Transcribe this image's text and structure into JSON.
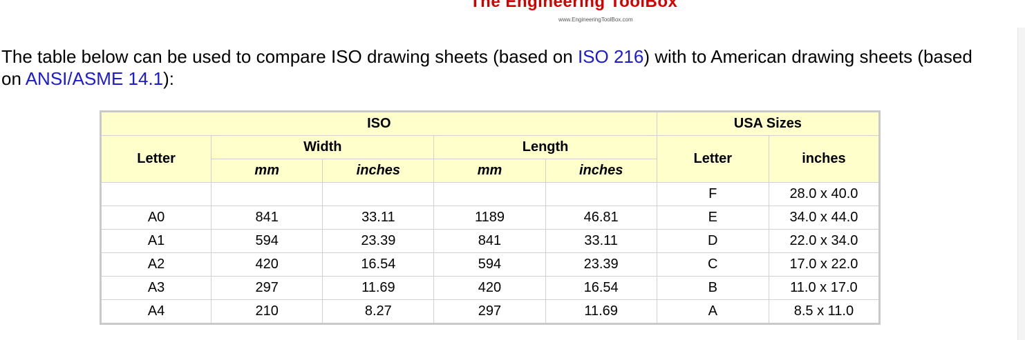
{
  "logo": {
    "title": "The Engineering ToolBox",
    "url": "www.EngineeringToolBox.com"
  },
  "intro": {
    "text_1": "The table below can be used to compare ISO drawing sheets (based on ",
    "link_iso": "ISO 216",
    "text_2": ") with to American drawing sheets (based on ",
    "link_ansi": "ANSI/ASME 14.1",
    "text_3": "):"
  },
  "table": {
    "group_iso": "ISO",
    "group_usa": "USA Sizes",
    "col_letter": "Letter",
    "col_width": "Width",
    "col_length": "Length",
    "sub_mm": "mm",
    "sub_inches": "inches",
    "col_usa_letter": "Letter",
    "col_usa_inches": "inches",
    "rows": [
      {
        "letter": "",
        "width_mm": "",
        "width_in": "",
        "length_mm": "",
        "length_in": "",
        "usa_letter": "F",
        "usa_in": "28.0 x 40.0"
      },
      {
        "letter": "A0",
        "width_mm": "841",
        "width_in": "33.11",
        "length_mm": "1189",
        "length_in": "46.81",
        "usa_letter": "E",
        "usa_in": "34.0 x 44.0"
      },
      {
        "letter": "A1",
        "width_mm": "594",
        "width_in": "23.39",
        "length_mm": "841",
        "length_in": "33.11",
        "usa_letter": "D",
        "usa_in": "22.0 x 34.0"
      },
      {
        "letter": "A2",
        "width_mm": "420",
        "width_in": "16.54",
        "length_mm": "594",
        "length_in": "23.39",
        "usa_letter": "C",
        "usa_in": "17.0 x 22.0"
      },
      {
        "letter": "A3",
        "width_mm": "297",
        "width_in": "11.69",
        "length_mm": "420",
        "length_in": "16.54",
        "usa_letter": "B",
        "usa_in": "11.0 x 17.0"
      },
      {
        "letter": "A4",
        "width_mm": "210",
        "width_in": "8.27",
        "length_mm": "297",
        "length_in": "11.69",
        "usa_letter": "A",
        "usa_in": "8.5 x 11.0"
      }
    ]
  }
}
